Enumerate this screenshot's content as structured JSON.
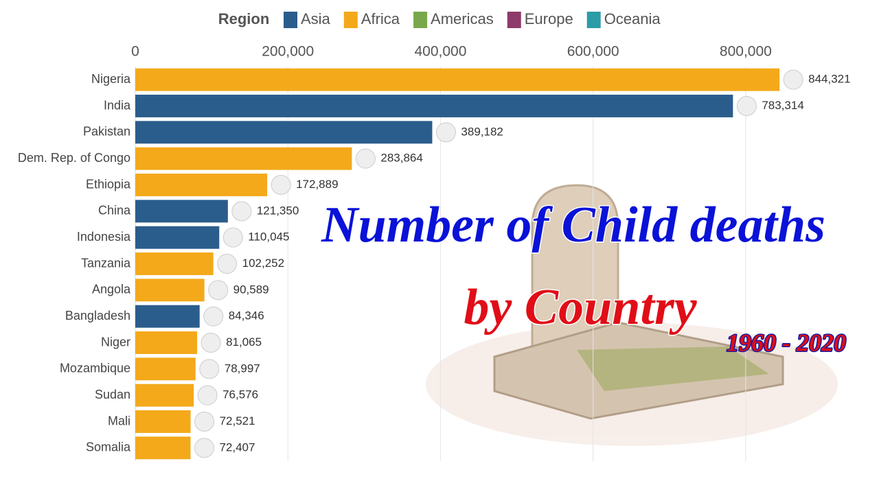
{
  "chart_data": {
    "type": "bar",
    "orientation": "horizontal",
    "legend_title": "Region",
    "legend": [
      {
        "name": "Asia",
        "color": "#2b5d8c"
      },
      {
        "name": "Africa",
        "color": "#f4a91b"
      },
      {
        "name": "Americas",
        "color": "#78a84a"
      },
      {
        "name": "Europe",
        "color": "#8e3a6a"
      },
      {
        "name": "Oceania",
        "color": "#2b9ca6"
      }
    ],
    "categories": [
      "Nigeria",
      "India",
      "Pakistan",
      "Dem. Rep. of Congo",
      "Ethiopia",
      "China",
      "Indonesia",
      "Tanzania",
      "Angola",
      "Bangladesh",
      "Niger",
      "Mozambique",
      "Sudan",
      "Mali",
      "Somalia"
    ],
    "regions": [
      "Africa",
      "Asia",
      "Asia",
      "Africa",
      "Africa",
      "Asia",
      "Asia",
      "Africa",
      "Africa",
      "Asia",
      "Africa",
      "Africa",
      "Africa",
      "Africa",
      "Africa"
    ],
    "values": [
      844321,
      783314,
      389182,
      283864,
      172889,
      121350,
      110045,
      102252,
      90589,
      84346,
      81065,
      78997,
      76576,
      72521,
      72407
    ],
    "value_labels": [
      "844,321",
      "783,314",
      "389,182",
      "283,864",
      "172,889",
      "121,350",
      "110,045",
      "102,252",
      "90,589",
      "84,346",
      "81,065",
      "78,997",
      "76,576",
      "72,521",
      "72,407"
    ],
    "xlim": [
      0,
      900000
    ],
    "xticks": [
      0,
      {
        "value": 200000,
        "label": "200,000"
      },
      {
        "value": 400000,
        "label": "400,000"
      },
      {
        "value": 600000,
        "label": "600,000"
      },
      {
        "value": 800000,
        "label": "800,000"
      }
    ],
    "grid": true,
    "annotations": [
      "Number of Child deaths",
      "by Country",
      "1960 - 2020"
    ]
  }
}
